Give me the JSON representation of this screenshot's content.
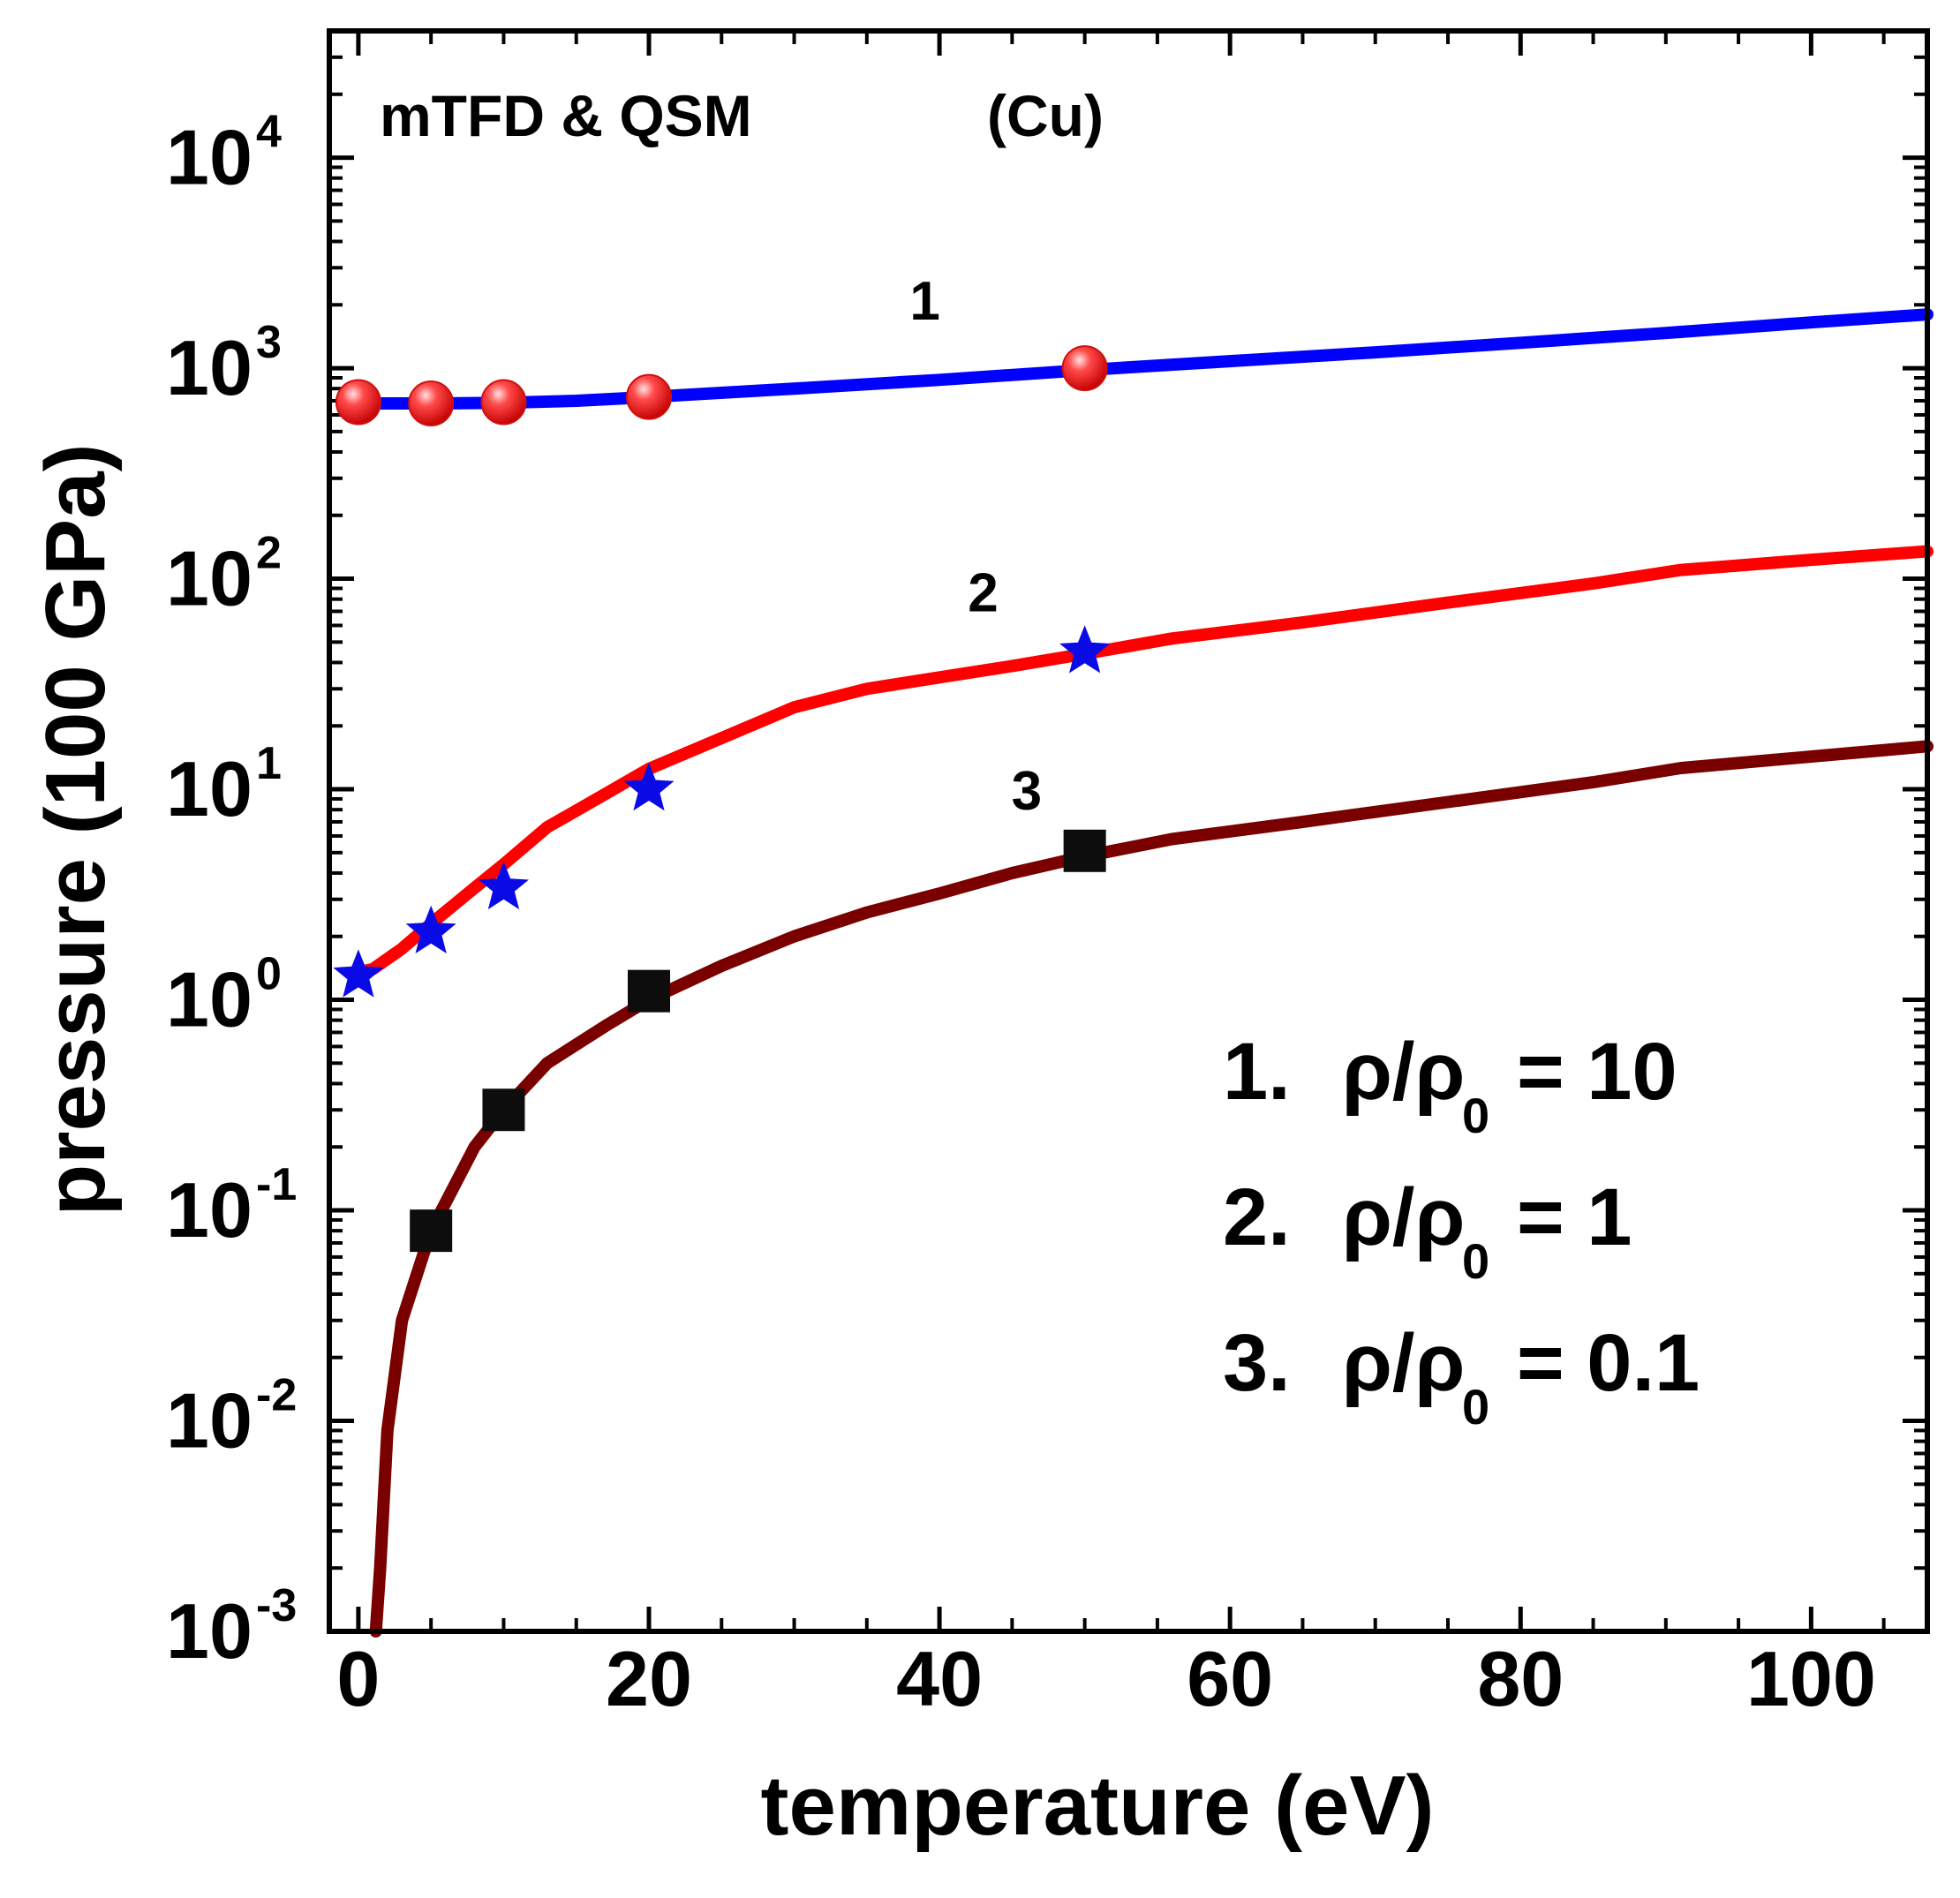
{
  "chart_data": {
    "type": "line",
    "title": "",
    "xlabel": "temperature (eV)",
    "ylabel": "pressure (100 GPa)",
    "xlim": [
      -2,
      108
    ],
    "ylim": [
      0.001,
      40000
    ],
    "yscale": "log",
    "x_ticks": [
      0,
      20,
      40,
      60,
      80,
      100
    ],
    "x_tick_labels": [
      "0",
      "20",
      "40",
      "60",
      "80",
      "100"
    ],
    "y_ticks": [
      0.001,
      0.01,
      0.1,
      1,
      10,
      100,
      1000,
      10000
    ],
    "y_tick_labels": [
      {
        "base": "10",
        "exp": "-3"
      },
      {
        "base": "10",
        "exp": "-2"
      },
      {
        "base": "10",
        "exp": "-1"
      },
      {
        "base": "10",
        "exp": "0"
      },
      {
        "base": "10",
        "exp": "1"
      },
      {
        "base": "10",
        "exp": "2"
      },
      {
        "base": "10",
        "exp": "3"
      },
      {
        "base": "10",
        "exp": "4"
      }
    ],
    "annotations": {
      "method": "mTFD & QSM",
      "element": "(Cu)"
    },
    "series": [
      {
        "name": "1. ρ/ρ0 = 10",
        "curve_label": "1",
        "type": "line",
        "color": "#0000ff",
        "x": [
          0,
          5,
          10,
          15,
          20,
          30,
          40,
          50,
          60,
          70,
          80,
          90,
          100,
          108
        ],
        "y": [
          680,
          680,
          685,
          700,
          730,
          800,
          880,
          980,
          1080,
          1190,
          1320,
          1470,
          1650,
          1800
        ]
      },
      {
        "name": "2. ρ/ρ0 = 1",
        "curve_label": "2",
        "type": "line",
        "color": "#ff0000",
        "x": [
          0,
          1,
          3,
          5,
          8,
          10,
          13,
          17,
          20,
          25,
          30,
          35,
          40,
          45,
          50,
          56,
          65,
          75,
          85,
          91,
          100,
          108
        ],
        "y": [
          1.35,
          1.4,
          1.75,
          2.3,
          3.4,
          4.4,
          6.6,
          9.5,
          12.5,
          17.5,
          24.5,
          30,
          34,
          38.5,
          44,
          52,
          62,
          77,
          95,
          110,
          123,
          135
        ]
      },
      {
        "name": "3. ρ/ρ0 = 0.1",
        "curve_label": "3",
        "type": "line",
        "color": "#7a0000",
        "x": [
          1.2,
          1.5,
          2,
          3,
          5,
          8,
          10,
          13,
          17,
          20,
          25,
          30,
          35,
          40,
          45,
          50,
          56,
          65,
          75,
          85,
          91,
          100,
          108
        ],
        "y": [
          0.001,
          0.002,
          0.009,
          0.03,
          0.08,
          0.2,
          0.3,
          0.5,
          0.75,
          1.0,
          1.45,
          2.0,
          2.6,
          3.2,
          4.0,
          4.8,
          5.8,
          7.0,
          8.7,
          10.8,
          12.6,
          14.3,
          16.0
        ]
      },
      {
        "name": "QSM ρ/ρ0 = 10",
        "type": "scatter",
        "marker": "circle",
        "color": "#e8141b",
        "x": [
          0,
          5,
          10,
          20,
          50
        ],
        "y": [
          690,
          680,
          690,
          730,
          1000
        ]
      },
      {
        "name": "QSM ρ/ρ0 = 1",
        "type": "scatter",
        "marker": "star",
        "color": "#0a0ae6",
        "x": [
          0,
          5,
          10,
          20,
          50
        ],
        "y": [
          1.3,
          2.1,
          3.4,
          10,
          45
        ]
      },
      {
        "name": "QSM ρ/ρ0 = 0.1",
        "type": "scatter",
        "marker": "square",
        "color": "#0d0d0d",
        "x": [
          5,
          10,
          20,
          50
        ],
        "y": [
          0.08,
          0.3,
          1.1,
          5.1
        ]
      }
    ],
    "legend": [
      {
        "num": "1.",
        "label": "ρ/ρ",
        "sub": "0",
        "value": "= 10"
      },
      {
        "num": "2.",
        "label": "ρ/ρ",
        "sub": "0",
        "value": "= 1"
      },
      {
        "num": "3.",
        "label": "ρ/ρ",
        "sub": "0",
        "value": "= 0.1"
      }
    ],
    "legend_position": "bottom-right"
  }
}
